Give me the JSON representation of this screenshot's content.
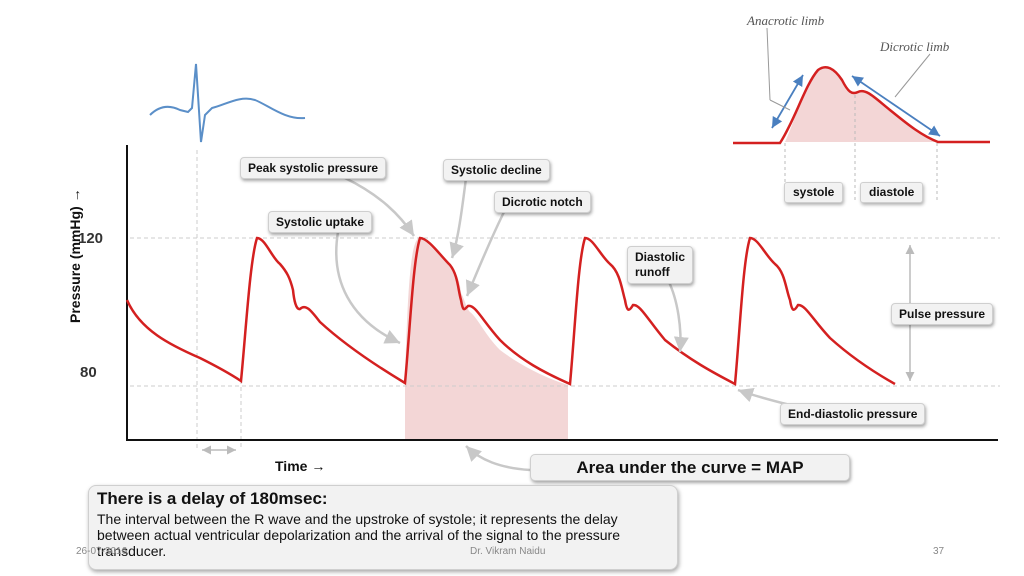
{
  "diagram": {
    "y_axis": {
      "label": "Pressure (mmHg) →",
      "ticks": [
        "120",
        "80"
      ]
    },
    "x_axis": {
      "label": "Time →"
    },
    "callouts": {
      "peak_systolic": "Peak systolic pressure",
      "systolic_decline": "Systolic decline",
      "dicrotic_notch": "Dicrotic notch",
      "systolic_uptake": "Systolic uptake",
      "diastolic_runoff_line1": "Diastolic",
      "diastolic_runoff_line2": "runoff",
      "pulse_pressure": "Pulse pressure",
      "end_diastolic": "End-diastolic pressure",
      "map": "Area under the curve = MAP"
    },
    "inset": {
      "anacrotic": "Anacrotic limb",
      "dicrotic": "Dicrotic limb",
      "systole": "systole",
      "diastole": "diastole"
    },
    "delay_box": {
      "title": "There is a delay of 180msec:",
      "body": "The interval between the R wave and the upstroke of systole; it represents the delay between actual ventricular depolarization and the arrival of the signal to the pressure transducer."
    },
    "colors": {
      "waveform": "#d42020",
      "shading": "#f3d6d6",
      "ecg": "#5b8fc8",
      "arrows": "#4a7fbf"
    }
  },
  "footer": {
    "date": "26-07-2016",
    "author": "Dr. Vikram Naidu",
    "page": "37"
  }
}
